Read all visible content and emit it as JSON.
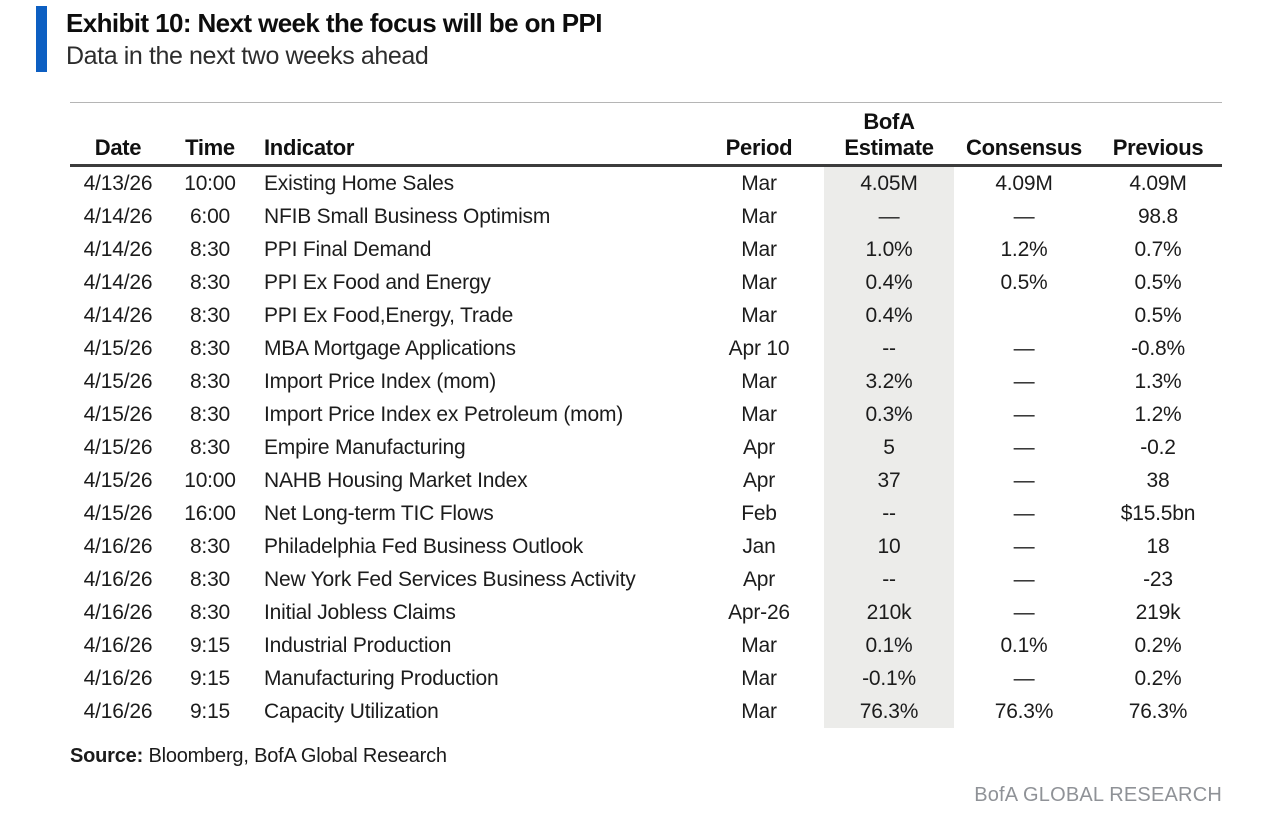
{
  "colors": {
    "accent_bar": "#0d5fc2",
    "estimate_col_bg": "#ececea",
    "rule_dark": "#3c3c3c",
    "rule_light": "#b5b5b5",
    "footer_text": "#8f9297"
  },
  "header": {
    "exhibit_title": "Exhibit 10: Next week the focus will be on PPI",
    "subtitle": "Data in the next two weeks ahead"
  },
  "table": {
    "highlight_column": 4,
    "headers": [
      "Date",
      "Time",
      "Indicator",
      "Period",
      "BofA\nEstimate",
      "Consensus",
      "Previous"
    ],
    "rows": [
      [
        "4/13/26",
        "10:00",
        "Existing Home Sales",
        "Mar",
        "4.05M",
        "4.09M",
        "4.09M"
      ],
      [
        "4/14/26",
        "6:00",
        "NFIB Small Business Optimism",
        "Mar",
        "—",
        "—",
        "98.8"
      ],
      [
        "4/14/26",
        "8:30",
        "PPI Final Demand",
        "Mar",
        "1.0%",
        "1.2%",
        "0.7%"
      ],
      [
        "4/14/26",
        "8:30",
        "PPI Ex Food and Energy",
        "Mar",
        "0.4%",
        "0.5%",
        "0.5%"
      ],
      [
        "4/14/26",
        "8:30",
        "PPI Ex Food,Energy, Trade",
        "Mar",
        "0.4%",
        "",
        "0.5%"
      ],
      [
        "4/15/26",
        "8:30",
        "MBA Mortgage Applications",
        "Apr 10",
        "--",
        "—",
        "-0.8%"
      ],
      [
        "4/15/26",
        "8:30",
        "Import Price Index (mom)",
        "Mar",
        "3.2%",
        "—",
        "1.3%"
      ],
      [
        "4/15/26",
        "8:30",
        "Import Price Index ex Petroleum (mom)",
        "Mar",
        "0.3%",
        "—",
        "1.2%"
      ],
      [
        "4/15/26",
        "8:30",
        "Empire Manufacturing",
        "Apr",
        "5",
        "—",
        "-0.2"
      ],
      [
        "4/15/26",
        "10:00",
        "NAHB Housing Market Index",
        "Apr",
        "37",
        "—",
        "38"
      ],
      [
        "4/15/26",
        "16:00",
        "Net Long-term TIC Flows",
        "Feb",
        "--",
        "—",
        "$15.5bn"
      ],
      [
        "4/16/26",
        "8:30",
        "Philadelphia Fed Business Outlook",
        "Jan",
        "10",
        "—",
        "18"
      ],
      [
        "4/16/26",
        "8:30",
        "New York Fed Services Business Activity",
        "Apr",
        "--",
        "—",
        "-23"
      ],
      [
        "4/16/26",
        "8:30",
        "Initial Jobless Claims",
        "Apr-26",
        "210k",
        "—",
        "219k"
      ],
      [
        "4/16/26",
        "9:15",
        "Industrial Production",
        "Mar",
        "0.1%",
        "0.1%",
        "0.2%"
      ],
      [
        "4/16/26",
        "9:15",
        "Manufacturing Production",
        "Mar",
        "-0.1%",
        "—",
        "0.2%"
      ],
      [
        "4/16/26",
        "9:15",
        "Capacity Utilization",
        "Mar",
        "76.3%",
        "76.3%",
        "76.3%"
      ]
    ]
  },
  "source": {
    "label": "Source:",
    "text": "Bloomberg, BofA Global Research"
  },
  "footer": {
    "brand": "BofA GLOBAL RESEARCH"
  }
}
